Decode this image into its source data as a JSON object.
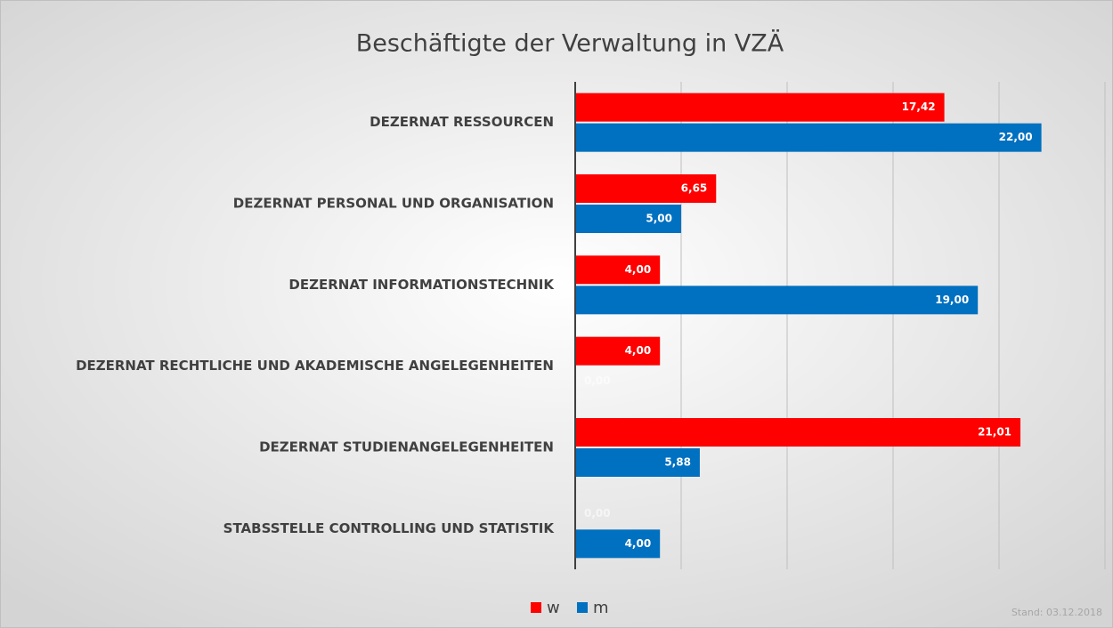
{
  "chart_data": {
    "type": "hbar",
    "title": "Beschäftigte der Verwaltung in VZÄ",
    "categories": [
      "DEZERNAT RESSOURCEN",
      "DEZERNAT PERSONAL UND ORGANISATION",
      "DEZERNAT INFORMATIONSTECHNIK",
      "DEZERNAT RECHTLICHE UND AKADEMISCHE ANGELEGENHEITEN",
      "DEZERNAT STUDIENANGELEGENHEITEN",
      "STABSSTELLE CONTROLLING UND STATISTIK"
    ],
    "series": [
      {
        "name": "w",
        "color": "#ff0000",
        "values": [
          17.42,
          6.65,
          4,
          4,
          21.01,
          0
        ],
        "value_labels": [
          "17,42",
          "6,65",
          "4,00",
          "4,00",
          "21,01",
          "0,00"
        ]
      },
      {
        "name": "m",
        "color": "#0070c0",
        "values": [
          22,
          5,
          19,
          0,
          5.88,
          4
        ],
        "value_labels": [
          "22,00",
          "5,00",
          "19,00",
          "0,00",
          "5,88",
          "4,00"
        ]
      }
    ],
    "xlim": [
      0,
      25
    ],
    "xticks": [
      0,
      5,
      10,
      15,
      20,
      25
    ],
    "grid": true,
    "legend": "bottom",
    "note": "Stand: 03.12.2018"
  }
}
